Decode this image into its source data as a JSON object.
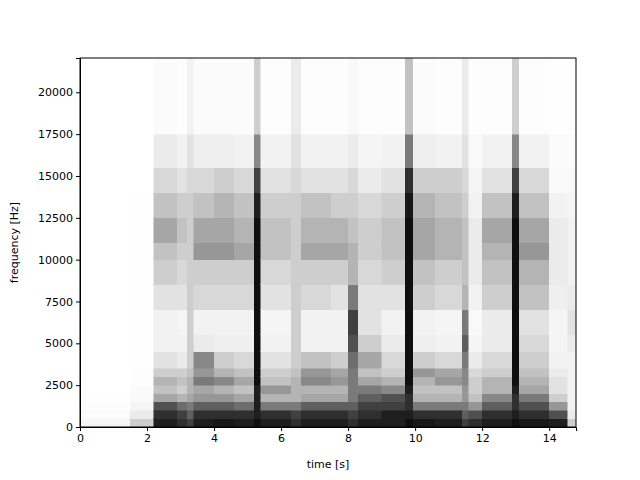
{
  "chart_data": {
    "type": "heatmap",
    "x_label": "time [s]",
    "y_label": "frequency [Hz]",
    "xlim": [
      0,
      14.8
    ],
    "ylim": [
      0,
      22050
    ],
    "xticks": [
      0,
      2,
      4,
      6,
      8,
      10,
      12,
      14
    ],
    "yticks": [
      0,
      2500,
      5000,
      7500,
      10000,
      12500,
      15000,
      17500,
      20000
    ],
    "zlim": [
      0,
      1
    ],
    "x_bins": [
      0,
      1.5,
      2.2,
      2.9,
      3.2,
      3.4,
      4.0,
      4.6,
      5.2,
      5.4,
      6.3,
      6.6,
      7.5,
      8.0,
      8.3,
      9.0,
      9.7,
      9.95,
      10.6,
      11.4,
      11.6,
      12.0,
      12.9,
      13.1,
      14.0,
      14.55,
      14.8
    ],
    "y_bins": [
      0,
      500,
      1000,
      1500,
      2000,
      2500,
      3000,
      3500,
      4500,
      5500,
      7000,
      8500,
      10000,
      11000,
      12500,
      14000,
      15500,
      17500,
      22050
    ],
    "cells": [
      [
        0.08,
        0.03,
        0.02,
        0.01,
        0,
        0,
        0,
        0,
        0,
        0,
        0,
        0,
        0,
        0,
        0,
        0,
        0,
        0
      ],
      [
        0.3,
        0.15,
        0.08,
        0.05,
        0.03,
        0.02,
        0.02,
        0.01,
        0.01,
        0.01,
        0.01,
        0.01,
        0.01,
        0.01,
        0.01,
        0,
        0,
        0
      ],
      [
        0.9,
        0.85,
        0.75,
        0.45,
        0.35,
        0.4,
        0.3,
        0.2,
        0.1,
        0.1,
        0.2,
        0.3,
        0.35,
        0.45,
        0.35,
        0.25,
        0.15,
        0.03
      ],
      [
        0.85,
        0.8,
        0.65,
        0.4,
        0.3,
        0.35,
        0.3,
        0.15,
        0.1,
        0.08,
        0.2,
        0.25,
        0.3,
        0.35,
        0.3,
        0.2,
        0.1,
        0.02
      ],
      [
        0.8,
        0.7,
        0.6,
        0.45,
        0.4,
        0.4,
        0.35,
        0.3,
        0.3,
        0.3,
        0.3,
        0.3,
        0.3,
        0.3,
        0.3,
        0.25,
        0.2,
        0.1
      ],
      [
        0.9,
        0.85,
        0.7,
        0.5,
        0.45,
        0.6,
        0.5,
        0.55,
        0.15,
        0.1,
        0.25,
        0.3,
        0.5,
        0.45,
        0.35,
        0.25,
        0.12,
        0.03
      ],
      [
        0.92,
        0.85,
        0.7,
        0.5,
        0.4,
        0.55,
        0.4,
        0.3,
        0.12,
        0.1,
        0.25,
        0.3,
        0.5,
        0.45,
        0.4,
        0.3,
        0.12,
        0.03
      ],
      [
        0.9,
        0.85,
        0.65,
        0.45,
        0.35,
        0.45,
        0.35,
        0.25,
        0.12,
        0.1,
        0.25,
        0.3,
        0.45,
        0.4,
        0.35,
        0.25,
        0.1,
        0.03
      ],
      [
        0.95,
        0.9,
        0.9,
        0.9,
        0.9,
        0.95,
        0.95,
        0.95,
        0.95,
        0.95,
        0.95,
        0.95,
        0.95,
        0.95,
        0.9,
        0.8,
        0.55,
        0.3
      ],
      [
        0.9,
        0.85,
        0.6,
        0.4,
        0.5,
        0.35,
        0.3,
        0.2,
        0.1,
        0.08,
        0.2,
        0.25,
        0.35,
        0.35,
        0.3,
        0.2,
        0.1,
        0.02
      ],
      [
        0.85,
        0.8,
        0.6,
        0.4,
        0.4,
        0.4,
        0.35,
        0.3,
        0.3,
        0.3,
        0.3,
        0.3,
        0.3,
        0.3,
        0.3,
        0.25,
        0.2,
        0.15
      ],
      [
        0.9,
        0.85,
        0.7,
        0.45,
        0.4,
        0.55,
        0.5,
        0.35,
        0.1,
        0.1,
        0.25,
        0.3,
        0.45,
        0.4,
        0.35,
        0.2,
        0.1,
        0.02
      ],
      [
        0.9,
        0.85,
        0.7,
        0.45,
        0.4,
        0.5,
        0.45,
        0.3,
        0.1,
        0.1,
        0.2,
        0.3,
        0.45,
        0.4,
        0.3,
        0.2,
        0.1,
        0.02
      ],
      [
        0.85,
        0.8,
        0.7,
        0.6,
        0.6,
        0.6,
        0.6,
        0.65,
        0.75,
        0.8,
        0.6,
        0.4,
        0.4,
        0.35,
        0.3,
        0.25,
        0.15,
        0.05
      ],
      [
        0.9,
        0.85,
        0.8,
        0.7,
        0.6,
        0.45,
        0.35,
        0.45,
        0.3,
        0.2,
        0.2,
        0.25,
        0.3,
        0.3,
        0.25,
        0.15,
        0.08,
        0.02
      ],
      [
        0.9,
        0.9,
        0.8,
        0.75,
        0.55,
        0.4,
        0.3,
        0.25,
        0.15,
        0.1,
        0.2,
        0.3,
        0.35,
        0.35,
        0.3,
        0.2,
        0.1,
        0.02
      ],
      [
        0.95,
        0.9,
        0.85,
        0.85,
        0.9,
        0.95,
        0.95,
        0.95,
        0.95,
        0.95,
        0.95,
        0.95,
        0.95,
        0.95,
        0.92,
        0.85,
        0.6,
        0.35
      ],
      [
        0.92,
        0.85,
        0.6,
        0.4,
        0.35,
        0.4,
        0.5,
        0.3,
        0.12,
        0.1,
        0.3,
        0.35,
        0.45,
        0.45,
        0.4,
        0.3,
        0.12,
        0.03
      ],
      [
        0.9,
        0.85,
        0.6,
        0.4,
        0.35,
        0.5,
        0.45,
        0.25,
        0.1,
        0.08,
        0.25,
        0.3,
        0.4,
        0.4,
        0.35,
        0.3,
        0.1,
        0.02
      ],
      [
        0.8,
        0.7,
        0.6,
        0.5,
        0.5,
        0.55,
        0.55,
        0.6,
        0.7,
        0.6,
        0.4,
        0.35,
        0.35,
        0.35,
        0.3,
        0.25,
        0.2,
        0.15
      ],
      [
        0.85,
        0.75,
        0.5,
        0.35,
        0.3,
        0.3,
        0.25,
        0.15,
        0.08,
        0.05,
        0.1,
        0.15,
        0.15,
        0.15,
        0.1,
        0.08,
        0.05,
        0.02
      ],
      [
        0.9,
        0.85,
        0.7,
        0.55,
        0.4,
        0.4,
        0.3,
        0.25,
        0.15,
        0.15,
        0.3,
        0.35,
        0.4,
        0.45,
        0.35,
        0.2,
        0.1,
        0.02
      ],
      [
        0.95,
        0.9,
        0.85,
        0.85,
        0.9,
        0.95,
        0.95,
        0.95,
        0.95,
        0.95,
        0.95,
        0.95,
        0.95,
        0.95,
        0.9,
        0.8,
        0.55,
        0.3
      ],
      [
        0.92,
        0.85,
        0.75,
        0.6,
        0.45,
        0.4,
        0.35,
        0.3,
        0.25,
        0.2,
        0.35,
        0.4,
        0.5,
        0.45,
        0.35,
        0.25,
        0.1,
        0.02
      ],
      [
        0.9,
        0.75,
        0.5,
        0.3,
        0.2,
        0.2,
        0.15,
        0.1,
        0.08,
        0.08,
        0.12,
        0.15,
        0.15,
        0.15,
        0.1,
        0.05,
        0.03,
        0.01
      ],
      [
        0.3,
        0.15,
        0.1,
        0.1,
        0.1,
        0.1,
        0.1,
        0.1,
        0.15,
        0.2,
        0.15,
        0.1,
        0.1,
        0.1,
        0.08,
        0.05,
        0.03,
        0.02
      ]
    ]
  }
}
